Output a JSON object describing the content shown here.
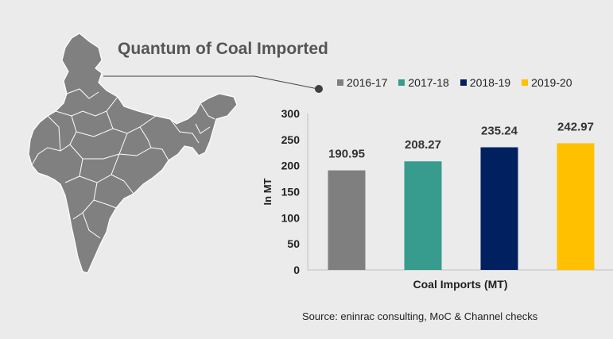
{
  "title": "Quantum of Coal Imported",
  "source": "Source: eninrac consulting, MoC & Channel checks",
  "map": {
    "icon": "india-map-icon",
    "fill": "#808080",
    "border": "#ffffff"
  },
  "chart_data": {
    "type": "bar",
    "categories": [
      "2016-17",
      "2017-18",
      "2018-19",
      "2019-20"
    ],
    "values": [
      190.95,
      208.27,
      235.24,
      242.97
    ],
    "data_labels": [
      "190.95",
      "208.27",
      "235.24",
      "242.97"
    ],
    "colors": [
      "#7f7f7f",
      "#379b8e",
      "#002060",
      "#ffc000"
    ],
    "title": "Quantum of Coal Imported",
    "xlabel": "Coal Imports (MT)",
    "ylabel": "In MT",
    "ylim": [
      0,
      300
    ],
    "yticks": [
      "0",
      "50",
      "100",
      "150",
      "200",
      "250",
      "300"
    ],
    "grid": false,
    "legend": {
      "position": "top",
      "labels": [
        "2016-17",
        "2017-18",
        "2018-19",
        "2019-20"
      ]
    }
  }
}
